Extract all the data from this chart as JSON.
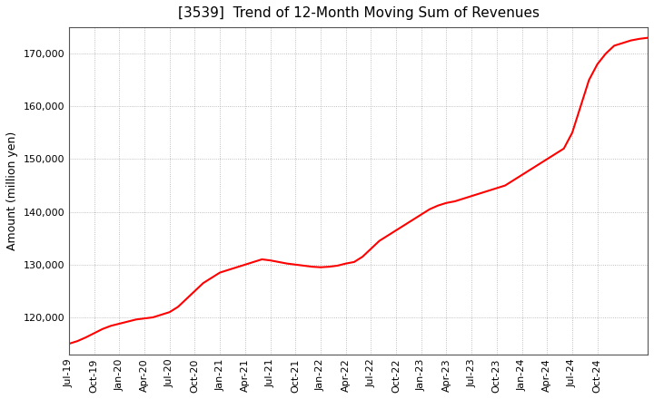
{
  "title": "[3539]  Trend of 12-Month Moving Sum of Revenues",
  "ylabel": "Amount (million yen)",
  "line_color": "#FF0000",
  "background_color": "#FFFFFF",
  "plot_bg_color": "#FFFFFF",
  "grid_color": "#999999",
  "ylim": [
    113000,
    175000
  ],
  "yticks": [
    120000,
    130000,
    140000,
    150000,
    160000,
    170000
  ],
  "values": [
    115000,
    115500,
    116200,
    117000,
    117800,
    118400,
    118800,
    119200,
    119600,
    119800,
    120000,
    120500,
    121000,
    122000,
    123500,
    125000,
    126500,
    127500,
    128500,
    129000,
    129500,
    130000,
    130500,
    131000,
    130800,
    130500,
    130200,
    130000,
    129800,
    129600,
    129500,
    129600,
    129800,
    130200,
    130500,
    131500,
    133000,
    134500,
    135500,
    136500,
    137500,
    138500,
    139500,
    140500,
    141200,
    141700,
    142000,
    142500,
    143000,
    143500,
    144000,
    144500,
    145000,
    146000,
    147000,
    148000,
    149000,
    150000,
    151000,
    152000,
    155000,
    160000,
    165000,
    168000,
    170000,
    171500,
    172000,
    172500,
    172800,
    173000
  ],
  "xtick_labels": [
    "Jul-19",
    "Oct-19",
    "Jan-20",
    "Apr-20",
    "Jul-20",
    "Oct-20",
    "Jan-21",
    "Apr-21",
    "Jul-21",
    "Oct-21",
    "Jan-22",
    "Apr-22",
    "Jul-22",
    "Oct-22",
    "Jan-23",
    "Apr-23",
    "Jul-23",
    "Oct-23",
    "Jan-24",
    "Apr-24",
    "Jul-24",
    "Oct-24"
  ],
  "xtick_positions": [
    0,
    3,
    6,
    9,
    12,
    15,
    18,
    21,
    24,
    27,
    30,
    33,
    36,
    39,
    42,
    45,
    48,
    51,
    54,
    57,
    60,
    63
  ],
  "title_fontsize": 11,
  "ylabel_fontsize": 9,
  "tick_fontsize": 8
}
